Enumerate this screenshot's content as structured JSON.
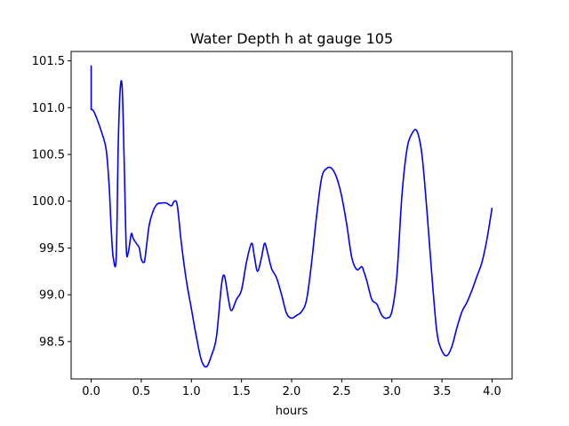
{
  "chart_data": {
    "type": "line",
    "title": "Water Depth h at gauge 105",
    "xlabel": "hours",
    "ylabel": "",
    "xlim": [
      -0.2,
      4.2
    ],
    "ylim": [
      98.1,
      101.6
    ],
    "x_ticks": [
      0.0,
      0.5,
      1.0,
      1.5,
      2.0,
      2.5,
      3.0,
      3.5,
      4.0
    ],
    "x_tick_labels": [
      "0.0",
      "0.5",
      "1.0",
      "1.5",
      "2.0",
      "2.5",
      "3.0",
      "3.5",
      "4.0"
    ],
    "y_ticks": [
      98.5,
      99.0,
      99.5,
      100.0,
      100.5,
      101.0,
      101.5
    ],
    "y_tick_labels": [
      "98.5",
      "99.0",
      "99.5",
      "100.0",
      "100.5",
      "101.0",
      "101.5"
    ],
    "grid": false,
    "series": [
      {
        "color": "#0000ff",
        "x": [
          0.0,
          0.0,
          0.02,
          0.05,
          0.1,
          0.15,
          0.18,
          0.2,
          0.22,
          0.25,
          0.27,
          0.29,
          0.31,
          0.33,
          0.35,
          0.37,
          0.4,
          0.42,
          0.45,
          0.48,
          0.5,
          0.53,
          0.55,
          0.58,
          0.62,
          0.66,
          0.7,
          0.75,
          0.8,
          0.83,
          0.86,
          0.9,
          0.95,
          1.0,
          1.05,
          1.1,
          1.15,
          1.2,
          1.25,
          1.3,
          1.33,
          1.37,
          1.4,
          1.45,
          1.5,
          1.55,
          1.6,
          1.63,
          1.66,
          1.7,
          1.73,
          1.76,
          1.8,
          1.85,
          1.9,
          1.95,
          2.0,
          2.05,
          2.1,
          2.15,
          2.2,
          2.25,
          2.3,
          2.35,
          2.4,
          2.45,
          2.5,
          2.55,
          2.6,
          2.65,
          2.7,
          2.72,
          2.75,
          2.8,
          2.85,
          2.9,
          2.95,
          3.0,
          3.05,
          3.1,
          3.15,
          3.2,
          3.25,
          3.3,
          3.35,
          3.4,
          3.45,
          3.5,
          3.55,
          3.6,
          3.65,
          3.7,
          3.75,
          3.8,
          3.85,
          3.9,
          3.95,
          4.0
        ],
        "y": [
          101.45,
          100.98,
          100.97,
          100.9,
          100.75,
          100.55,
          100.15,
          99.7,
          99.4,
          99.4,
          100.6,
          101.2,
          101.2,
          100.4,
          99.5,
          99.45,
          99.65,
          99.6,
          99.55,
          99.5,
          99.38,
          99.35,
          99.5,
          99.75,
          99.9,
          99.97,
          99.98,
          99.98,
          99.95,
          100.0,
          99.95,
          99.55,
          99.15,
          98.85,
          98.55,
          98.3,
          98.23,
          98.35,
          98.55,
          99.1,
          99.2,
          98.95,
          98.83,
          98.95,
          99.05,
          99.35,
          99.55,
          99.4,
          99.25,
          99.4,
          99.55,
          99.45,
          99.28,
          99.18,
          99.0,
          98.8,
          98.75,
          98.78,
          98.82,
          98.95,
          99.35,
          99.85,
          100.25,
          100.35,
          100.35,
          100.25,
          100.05,
          99.75,
          99.4,
          99.27,
          99.3,
          99.25,
          99.15,
          98.95,
          98.9,
          98.78,
          98.75,
          98.82,
          99.2,
          100.05,
          100.55,
          100.72,
          100.75,
          100.5,
          99.9,
          99.2,
          98.6,
          98.4,
          98.35,
          98.45,
          98.65,
          98.82,
          98.92,
          99.05,
          99.2,
          99.35,
          99.6,
          99.93
        ]
      }
    ]
  }
}
